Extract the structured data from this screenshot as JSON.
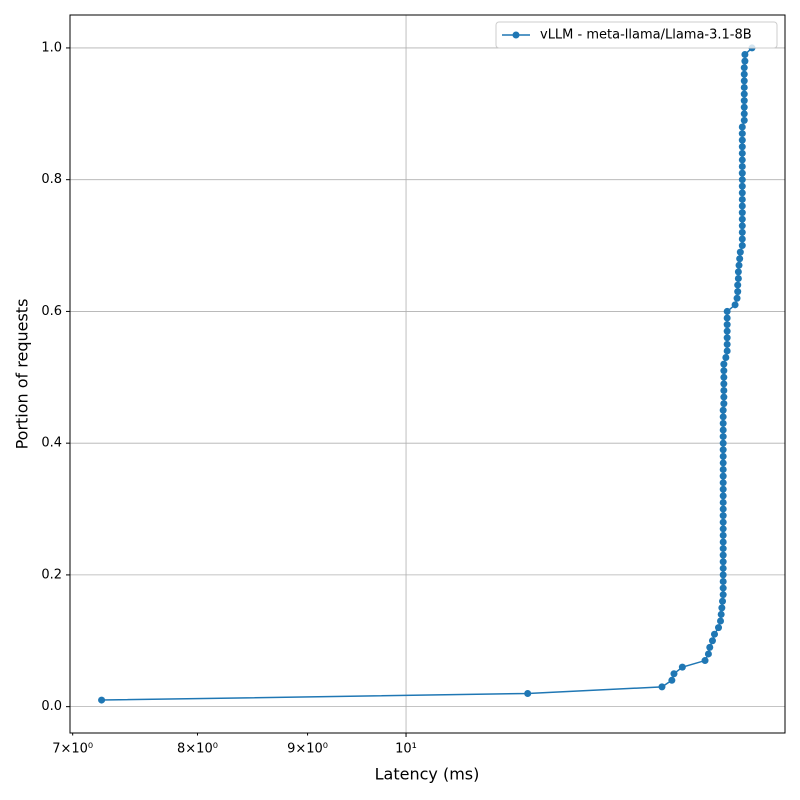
{
  "chart_data": {
    "type": "line",
    "xlabel": "Latency (ms)",
    "ylabel": "Portion of requests",
    "x_scale": "log",
    "legend_position": "upper right",
    "grid": true,
    "xlim": [
      6.98,
      15.0
    ],
    "ylim": [
      -0.04,
      1.05
    ],
    "xticks": [
      {
        "value": 10,
        "label": "10¹"
      }
    ],
    "xminor_ticks": [
      {
        "value": 7,
        "label": "7×10⁰"
      },
      {
        "value": 8,
        "label": "8×10⁰"
      },
      {
        "value": 9,
        "label": "9×10⁰"
      }
    ],
    "yticks": [
      {
        "value": 0,
        "label": "0.0"
      },
      0.2,
      0.4,
      0.6,
      0.8,
      {
        "value": 1,
        "label": "1.0"
      }
    ],
    "series": [
      {
        "name": "vLLM - meta-llama/Llama-3.1-8B",
        "color": "#1f77b4",
        "x": [
          7.22,
          11.39,
          13.15,
          13.29,
          13.32,
          13.44,
          13.77,
          13.82,
          13.84,
          13.88,
          13.91,
          13.97,
          14.0,
          14.01,
          14.02,
          14.03,
          14.04,
          14.04,
          14.04,
          14.04,
          14.04,
          14.04,
          14.04,
          14.04,
          14.04,
          14.04,
          14.04,
          14.04,
          14.04,
          14.04,
          14.04,
          14.04,
          14.04,
          14.04,
          14.04,
          14.04,
          14.04,
          14.04,
          14.04,
          14.04,
          14.04,
          14.04,
          14.04,
          14.04,
          14.04,
          14.05,
          14.05,
          14.05,
          14.05,
          14.05,
          14.05,
          14.05,
          14.08,
          14.1,
          14.1,
          14.1,
          14.1,
          14.1,
          14.1,
          14.1,
          14.22,
          14.25,
          14.26,
          14.26,
          14.27,
          14.27,
          14.28,
          14.29,
          14.3,
          14.33,
          14.33,
          14.33,
          14.33,
          14.33,
          14.33,
          14.33,
          14.33,
          14.33,
          14.33,
          14.33,
          14.33,
          14.33,
          14.33,
          14.33,
          14.33,
          14.33,
          14.33,
          14.33,
          14.36,
          14.36,
          14.36,
          14.36,
          14.36,
          14.36,
          14.36,
          14.36,
          14.36,
          14.37,
          14.37,
          14.48
        ],
        "values": [
          0.01,
          0.02,
          0.03,
          0.04,
          0.05,
          0.06,
          0.07,
          0.08,
          0.09,
          0.1,
          0.11,
          0.12,
          0.13,
          0.14,
          0.15,
          0.16,
          0.17,
          0.18,
          0.19,
          0.2,
          0.21,
          0.22,
          0.23,
          0.24,
          0.25,
          0.26,
          0.27,
          0.28,
          0.29,
          0.3,
          0.31,
          0.32,
          0.33,
          0.34,
          0.35,
          0.36,
          0.37,
          0.38,
          0.39,
          0.4,
          0.41,
          0.42,
          0.43,
          0.44,
          0.45,
          0.46,
          0.47,
          0.48,
          0.49,
          0.5,
          0.51,
          0.52,
          0.53,
          0.54,
          0.55,
          0.56,
          0.57,
          0.58,
          0.59,
          0.6,
          0.61,
          0.62,
          0.63,
          0.64,
          0.65,
          0.66,
          0.67,
          0.68,
          0.69,
          0.7,
          0.71,
          0.72,
          0.73,
          0.74,
          0.75,
          0.76,
          0.77,
          0.78,
          0.79,
          0.8,
          0.81,
          0.82,
          0.83,
          0.84,
          0.85,
          0.86,
          0.87,
          0.88,
          0.89,
          0.9,
          0.91,
          0.92,
          0.93,
          0.94,
          0.95,
          0.96,
          0.97,
          0.98,
          0.99,
          1.0
        ]
      }
    ]
  }
}
